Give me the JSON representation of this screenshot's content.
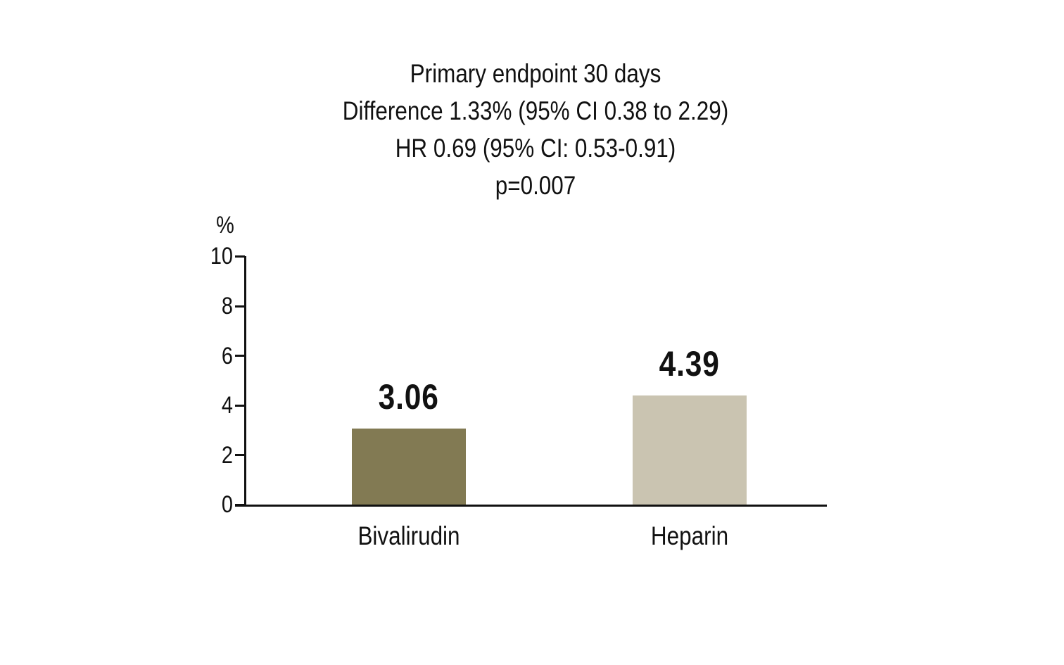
{
  "chart_data": {
    "type": "bar",
    "title": "Primary endpoint 30 days",
    "subtitle_lines": [
      "Difference 1.33% (95% CI 0.38 to 2.29)",
      "HR 0.69 (95% CI: 0.53-0.91)",
      "p=0.007"
    ],
    "categories": [
      "Bivalirudin",
      "Heparin"
    ],
    "values": [
      3.06,
      4.39
    ],
    "value_labels": [
      "3.06",
      "4.39"
    ],
    "ylabel": "%",
    "ylim": [
      0,
      10
    ],
    "yticks": [
      10,
      8,
      6,
      4,
      2,
      0
    ],
    "grid": false,
    "legend": "none",
    "bar_colors": [
      "#827A53",
      "#CAC4B1"
    ],
    "axis_color": "#111111",
    "text_color": "#111111"
  }
}
